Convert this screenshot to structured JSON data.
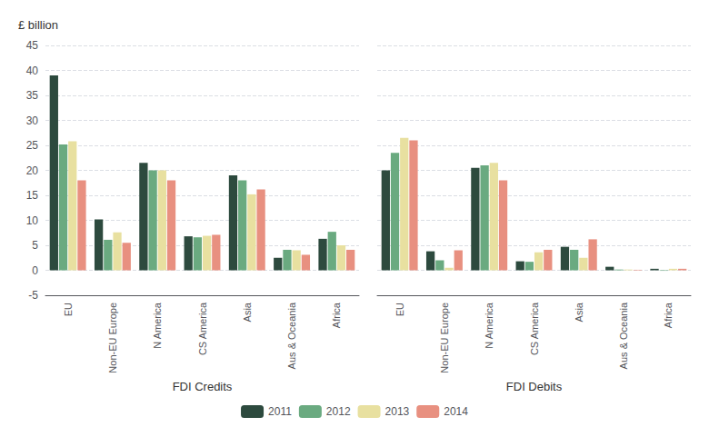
{
  "chart_data": {
    "type": "bar",
    "y_label": "£ billion",
    "sections": [
      {
        "label": "FDI Credits",
        "categories": [
          "EU",
          "Non-EU Europe",
          "N America",
          "CS America",
          "Asia",
          "Aus & Oceania",
          "Africa"
        ]
      },
      {
        "label": "FDI Debits",
        "categories": [
          "EU",
          "Non-EU Europe",
          "N America",
          "CS America",
          "Asia",
          "Aus & Oceania",
          "Africa"
        ]
      }
    ],
    "series": [
      {
        "name": "2011",
        "color": "#2d4a3e",
        "values": [
          39,
          10.2,
          21.5,
          6.8,
          19,
          2.5,
          6.3,
          20,
          3.8,
          20.5,
          1.8,
          4.7,
          0.7,
          0.3
        ]
      },
      {
        "name": "2012",
        "color": "#6aaa80",
        "values": [
          25.2,
          6.1,
          20,
          6.6,
          18,
          4.1,
          7.7,
          23.5,
          2.0,
          21,
          1.7,
          4.1,
          0.15,
          -0.1
        ]
      },
      {
        "name": "2013",
        "color": "#e8e0a0",
        "values": [
          25.8,
          7.6,
          20,
          6.9,
          15.2,
          4.0,
          5.0,
          26.5,
          0.5,
          21.5,
          3.6,
          2.5,
          0.15,
          0.3
        ]
      },
      {
        "name": "2014",
        "color": "#e89080",
        "values": [
          18,
          5.5,
          18,
          7.1,
          16.2,
          3.1,
          4.1,
          26,
          4.0,
          18,
          4.1,
          6.2,
          0.1,
          0.3
        ]
      }
    ],
    "ylim": [
      -5,
      45
    ],
    "yticks": [
      -5,
      0,
      5,
      10,
      15,
      20,
      25,
      30,
      35,
      40,
      45
    ],
    "grid": true,
    "legend": "lower center"
  }
}
